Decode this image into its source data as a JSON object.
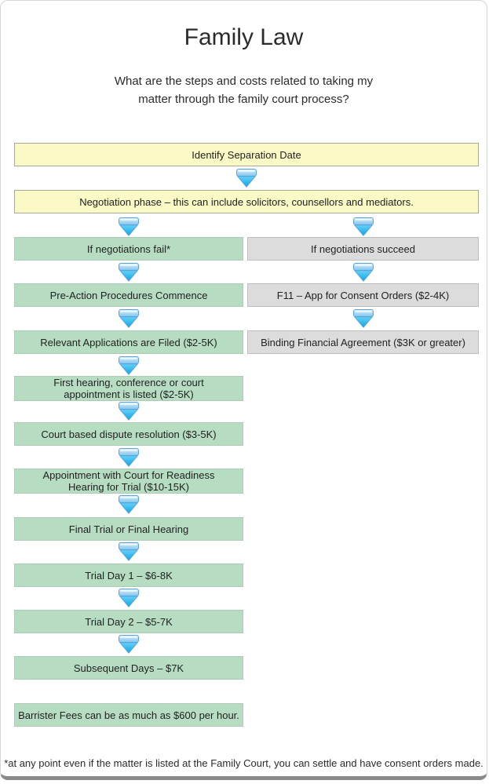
{
  "header": {
    "title": "Family Law",
    "subtitle": "What are the steps and costs related to taking my matter through the family court process?"
  },
  "flow": {
    "top": [
      "Identify Separation Date",
      "Negotiation phase – this can include solicitors, counsellors and mediators."
    ],
    "left_path": [
      "If negotiations fail*",
      "Pre-Action Procedures Commence",
      "Relevant Applications are Filed ($2-5K)",
      "First hearing, conference or court appointment is listed ($2-5K)",
      "Court based dispute resolution ($3-5K)",
      "Appointment with Court for Readiness Hearing for Trial ($10-15K)",
      "Final Trial or Final Hearing",
      "Trial Day 1 – $6-8K",
      "Trial Day 2 – $5-7K",
      "Subsequent Days – $7K"
    ],
    "left_note": "Barrister Fees can be as much as $600 per hour.",
    "right_path": [
      "If negotiations succeed",
      "F11 – App for Consent Orders ($2-4K)",
      "Binding Financial Agreement ($3K or greater)"
    ]
  },
  "footer": {
    "note": "*at any point even if the matter is listed at the Family Court, you can settle and have consent orders made."
  },
  "icons": {
    "down_arrow": "down-arrow-icon"
  },
  "colors": {
    "start_box_yellow": "#FBF9C5",
    "contested_box_green": "#B6DDC1",
    "settlement_box_gray": "#DCDCDC",
    "arrow_blue": "#2FB3EC",
    "card_bottom_edge": "#8A8A8A"
  }
}
